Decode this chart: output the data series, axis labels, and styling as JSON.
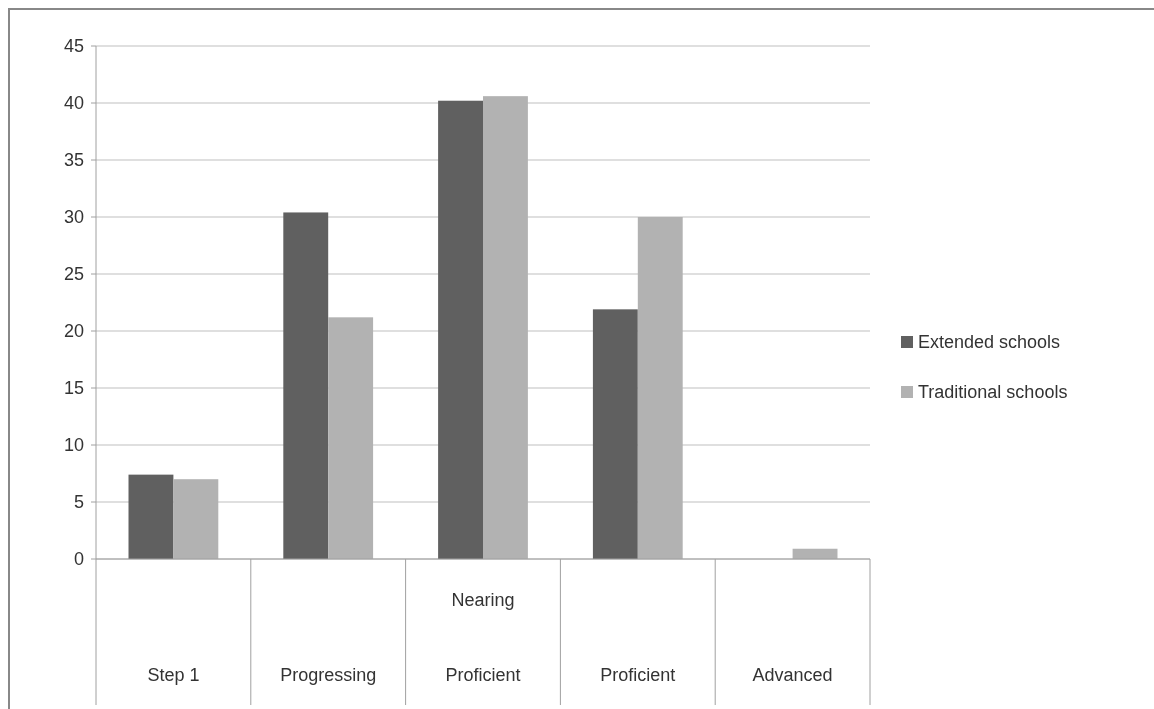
{
  "chart_data": {
    "type": "bar",
    "categories": [
      "Step 1",
      "Progressing",
      "Nearing\nProficient",
      "Proficient",
      "Advanced"
    ],
    "series": [
      {
        "name": "Extended schools",
        "color": "#606060",
        "values": [
          7.4,
          30.4,
          40.2,
          21.9,
          0
        ]
      },
      {
        "name": "Traditional schools",
        "color": "#b2b2b2",
        "values": [
          7.0,
          21.2,
          40.6,
          30.0,
          0.9
        ]
      }
    ],
    "ylim": [
      0,
      45
    ],
    "yticks": [
      0,
      5,
      10,
      15,
      20,
      25,
      30,
      35,
      40,
      45
    ],
    "grid": "y",
    "legend": "right"
  }
}
